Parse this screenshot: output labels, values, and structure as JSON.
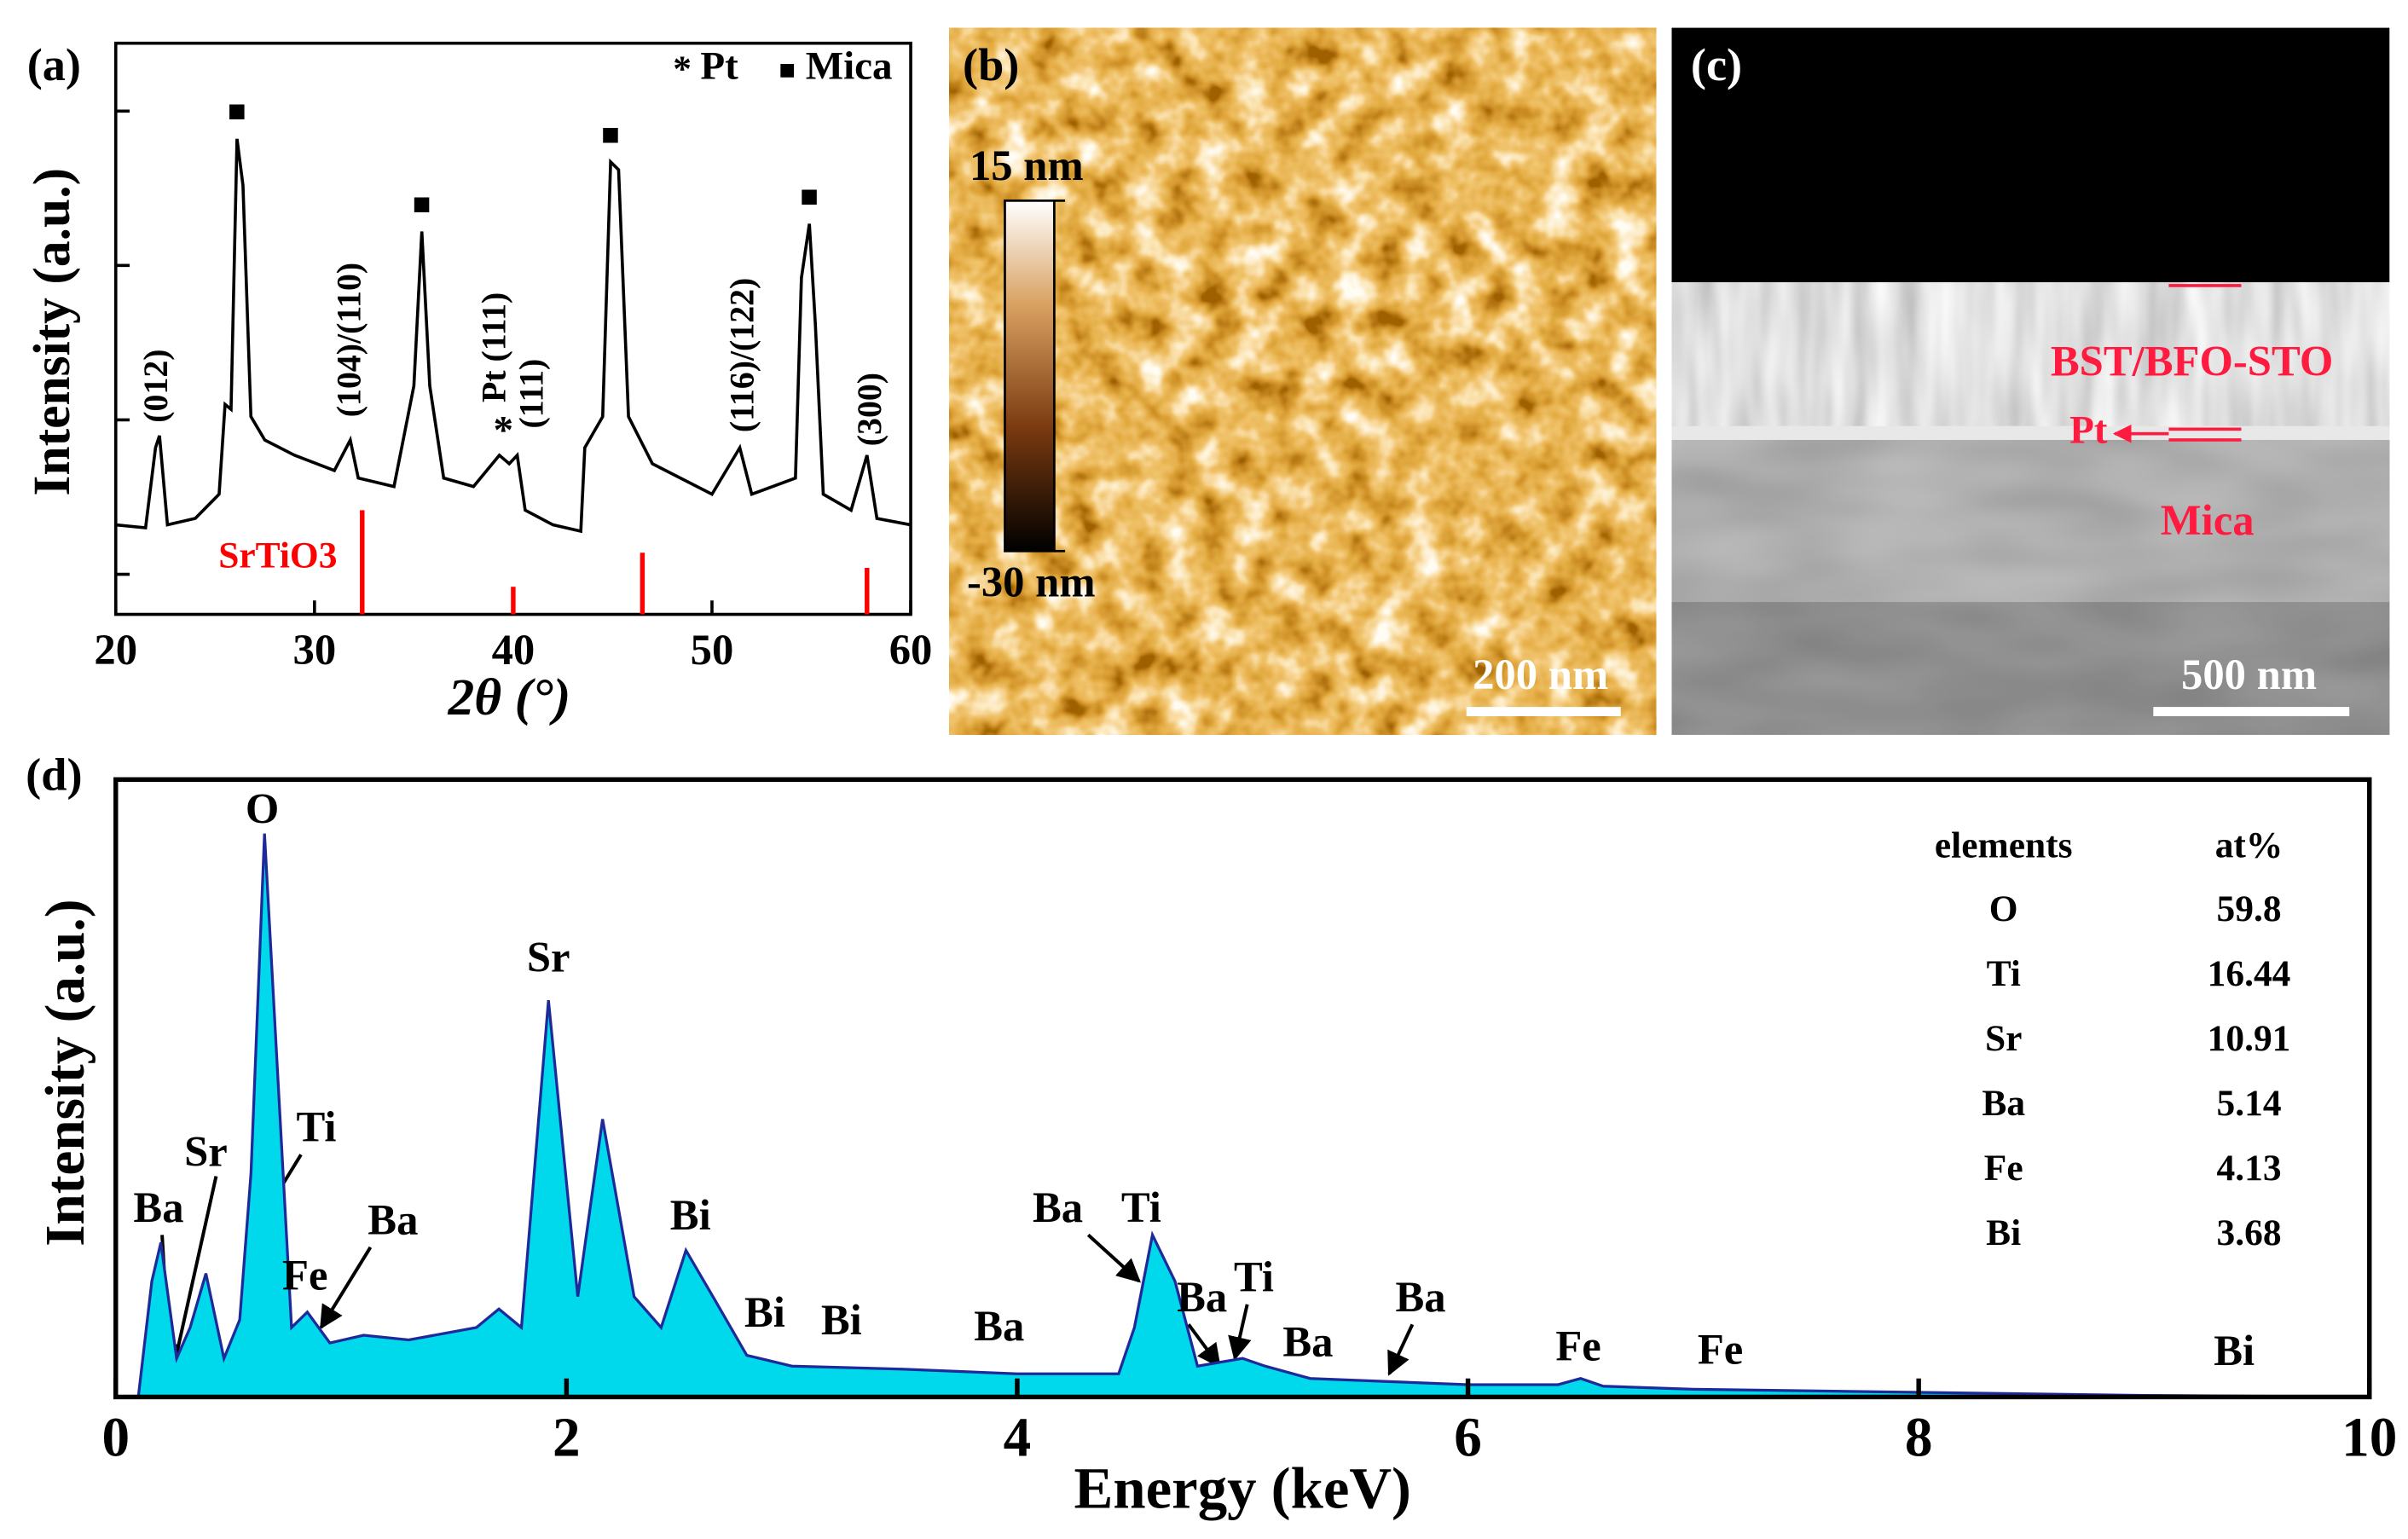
{
  "chart_data": [
    {
      "type": "line",
      "label": "(a)",
      "xlabel": "2θ (°)",
      "ylabel": "Intensity (a.u.)",
      "x": [
        20,
        21.5,
        22.0,
        22.2,
        22.6,
        24,
        25.2,
        25.5,
        25.8,
        26.1,
        26.4,
        26.8,
        27.5,
        29,
        31,
        31.8,
        32.2,
        34,
        35.0,
        35.4,
        35.8,
        36.5,
        38,
        39.3,
        39.8,
        40.2,
        40.6,
        42,
        43.4,
        43.6,
        44.5,
        44.9,
        45.3,
        45.8,
        47,
        50,
        51.4,
        52,
        54.2,
        54.5,
        54.9,
        55.2,
        55.6,
        57,
        57.8,
        58.3,
        60
      ],
      "values": [
        2.09,
        2.0,
        6.6,
        7.9,
        2.09,
        2.3,
        3.3,
        12.6,
        11.7,
        661,
        331,
        10.5,
        7.4,
        5.9,
        4.7,
        7.4,
        4.2,
        3.7,
        16.6,
        166,
        16.6,
        4.2,
        3.7,
        5.9,
        5.2,
        5.9,
        2.6,
        2.09,
        1.9,
        6.6,
        10.5,
        468,
        417,
        10.5,
        5.2,
        3.3,
        6.6,
        3.3,
        4.2,
        83,
        186,
        42,
        3.3,
        2.6,
        5.9,
        2.3,
        2.09
      ],
      "color": "#000000",
      "xlim": [
        20,
        60
      ],
      "xticks": [
        20,
        30,
        40,
        50,
        60
      ],
      "ylim": [
        0.55,
        2750
      ],
      "yticks": [
        1,
        10,
        100,
        1000
      ],
      "log_y": true,
      "reference": {
        "name": "SrTiO3",
        "color": "#ff0000",
        "x": [
          32.4,
          40,
          46.5,
          57.8
        ],
        "values": [
          2.6,
          0.83,
          1.38,
          1.1
        ]
      },
      "markers": [
        {
          "symbol": "*",
          "name": "Pt",
          "x": [
            39.5
          ]
        },
        {
          "symbol": "■",
          "name": "Mica",
          "x": [
            26.1,
            35.4,
            44.9,
            54.9
          ]
        }
      ],
      "annotations": [
        {
          "text": "(012)",
          "x": 22.2,
          "y": 16.6
        },
        {
          "text": "(104)/(110)",
          "x": 31.9,
          "y": 33
        },
        {
          "text": "Pt (111)",
          "x": 39.2,
          "y": 29.5
        },
        {
          "text": "(111)",
          "x": 41.1,
          "y": 14.8
        },
        {
          "text": "(116)/(122)",
          "x": 51.7,
          "y": 26.3
        },
        {
          "text": "(300)",
          "x": 58.1,
          "y": 11.7
        }
      ]
    },
    {
      "type": "image",
      "label": "(b)",
      "colorbar": {
        "ticks": [
          {
            "value": 15,
            "label": "15 nm"
          },
          {
            "value": -30,
            "label": "-30 nm"
          }
        ]
      },
      "scale_bar": "200 nm"
    },
    {
      "type": "image",
      "label": "(c)",
      "labels": [
        "BST/BFO-STO",
        "Pt",
        "Mica"
      ],
      "scale_bar": "500 nm"
    },
    {
      "type": "area",
      "label": "(d)",
      "xlabel": "Energy (keV)",
      "ylabel": "Intensity (a.u.)",
      "x": [
        0.1,
        0.16,
        0.2,
        0.27,
        0.33,
        0.4,
        0.48,
        0.55,
        0.6,
        0.66,
        0.72,
        0.78,
        0.85,
        0.95,
        1.1,
        1.3,
        1.6,
        1.7,
        1.8,
        1.92,
        2.05,
        2.16,
        2.3,
        2.42,
        2.53,
        2.65,
        2.8,
        3.0,
        3.5,
        4.0,
        4.45,
        4.52,
        4.6,
        4.7,
        4.8,
        5.0,
        5.1,
        5.3,
        6.0,
        6.4,
        6.5,
        6.6,
        7.0,
        8.0,
        9.0,
        10.0
      ],
      "values": [
        0,
        18.75,
        25,
        6.25,
        11.25,
        20,
        6.25,
        12.5,
        36.25,
        91.25,
        51.25,
        11.25,
        13.75,
        8.75,
        10,
        9.25,
        11.25,
        14.25,
        11.25,
        64.25,
        16.25,
        45,
        16.25,
        11.25,
        23.75,
        16.25,
        6.75,
        5,
        4.5,
        3.75,
        3.75,
        11.25,
        26.25,
        18.75,
        5,
        6.25,
        5,
        3,
        2,
        2,
        3,
        1.75,
        1.25,
        0.75,
        0.25,
        0
      ],
      "color": "#00d8ec",
      "line_color": "#1f2a9a",
      "xlim": [
        0,
        10
      ],
      "xticks": [
        0,
        2,
        4,
        6,
        8,
        10
      ],
      "ylim": [
        0,
        100
      ],
      "annotations": [
        {
          "text": "O",
          "x": 0.65,
          "y": 94.5
        },
        {
          "text": "Sr",
          "x": 1.92,
          "y": 70.5
        },
        {
          "text": "Ti",
          "x": 0.89,
          "y": 43
        },
        {
          "text": "Sr",
          "x": 0.4,
          "y": 39
        },
        {
          "text": "Ba",
          "x": 0.19,
          "y": 30
        },
        {
          "text": "Fe",
          "x": 0.84,
          "y": 19
        },
        {
          "text": "Ba",
          "x": 1.23,
          "y": 28
        },
        {
          "text": "Bi",
          "x": 2.55,
          "y": 28.75
        },
        {
          "text": "Bi",
          "x": 2.88,
          "y": 13
        },
        {
          "text": "Bi",
          "x": 3.22,
          "y": 11.75
        },
        {
          "text": "Ba",
          "x": 3.92,
          "y": 10.75
        },
        {
          "text": "Ba",
          "x": 4.18,
          "y": 30
        },
        {
          "text": "Ti",
          "x": 4.55,
          "y": 30
        },
        {
          "text": "Ba",
          "x": 4.82,
          "y": 15.5
        },
        {
          "text": "Ti",
          "x": 5.05,
          "y": 18.75
        },
        {
          "text": "Ba",
          "x": 5.29,
          "y": 8.25
        },
        {
          "text": "Ba",
          "x": 5.79,
          "y": 15.5
        },
        {
          "text": "Fe",
          "x": 6.49,
          "y": 7.5
        },
        {
          "text": "Fe",
          "x": 7.12,
          "y": 7
        },
        {
          "text": "Bi",
          "x": 9.4,
          "y": 6.75
        }
      ],
      "table": {
        "columns": [
          "elements",
          "at%"
        ],
        "rows": [
          [
            "O",
            59.8
          ],
          [
            "Ti",
            16.44
          ],
          [
            "Sr",
            10.91
          ],
          [
            "Ba",
            5.14
          ],
          [
            "Fe",
            4.13
          ],
          [
            "Bi",
            3.68
          ]
        ]
      }
    }
  ]
}
